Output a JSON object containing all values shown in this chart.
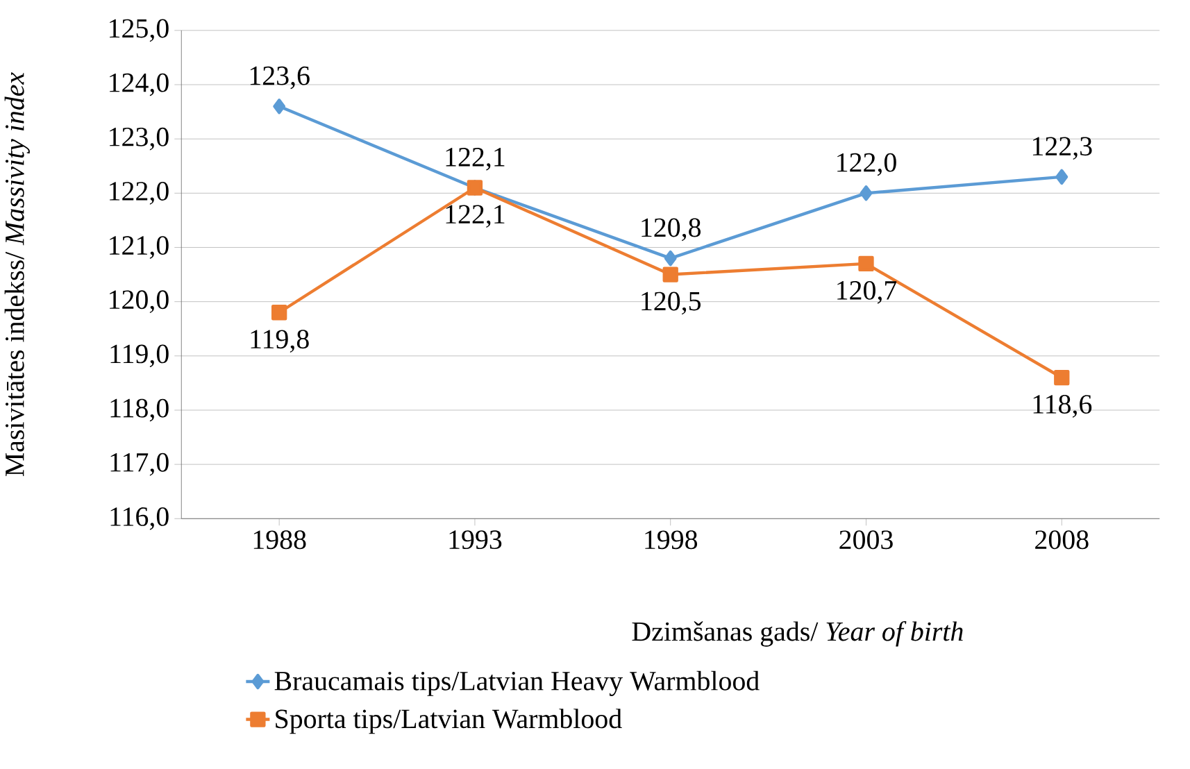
{
  "chart_data": {
    "type": "line",
    "categories": [
      "1988",
      "1993",
      "1998",
      "2003",
      "2008"
    ],
    "xlabel": "Dzimšanas gads/ *Year of birth*",
    "ylabel": "Masivitātes indekss/ *Massivity index*",
    "series": [
      {
        "name": "Braucamais tips/Latvian Heavy Warmblood",
        "color": "#5b9bd5",
        "marker": "diamond",
        "values": [
          123.6,
          122.1,
          120.8,
          122.0,
          122.3
        ],
        "value_labels": [
          "123,6",
          "122,1",
          "120,8",
          "122,0",
          "122,3"
        ]
      },
      {
        "name": "Sporta tips/Latvian Warmblood",
        "color": "#ed7d31",
        "marker": "square",
        "values": [
          119.8,
          122.1,
          120.5,
          120.7,
          118.6
        ],
        "value_labels": [
          "119,8",
          "122,1",
          "120,5",
          "120,7",
          "118,6"
        ]
      }
    ],
    "ylim": [
      116,
      125
    ],
    "yticks": [
      {
        "value": 116,
        "label": "116,0"
      },
      {
        "value": 117,
        "label": "117,0"
      },
      {
        "value": 118,
        "label": "118,0"
      },
      {
        "value": 119,
        "label": "119,0"
      },
      {
        "value": 120,
        "label": "120,0"
      },
      {
        "value": 121,
        "label": "121,0"
      },
      {
        "value": 122,
        "label": "122,0"
      },
      {
        "value": 123,
        "label": "123,0"
      },
      {
        "value": 124,
        "label": "124,0"
      },
      {
        "value": 125,
        "label": "125,0"
      }
    ],
    "grid": "y",
    "legend": "bottom",
    "line_style": "solid"
  }
}
